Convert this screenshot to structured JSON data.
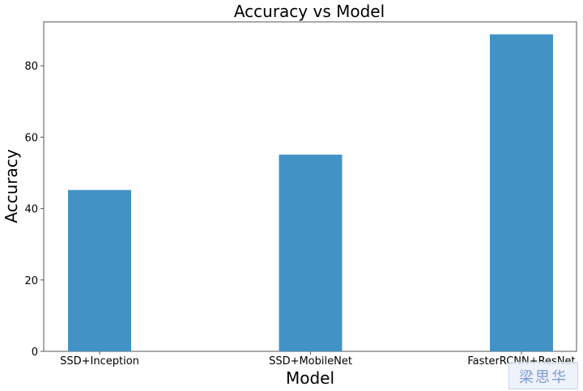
{
  "chart_data": {
    "type": "bar",
    "title": "Accuracy vs Model",
    "xlabel": "Model",
    "ylabel": "Accuracy",
    "categories": [
      "SSD+Inception",
      "SSD+MobileNet",
      "FasterRCNN+ResNet"
    ],
    "values": [
      45.2,
      55.1,
      88.8
    ],
    "ylim": [
      0,
      92.3
    ],
    "yticks": [
      0,
      20,
      40,
      60,
      80
    ],
    "bar_color": "#4292c6",
    "grid": false,
    "legend": "none"
  }
}
